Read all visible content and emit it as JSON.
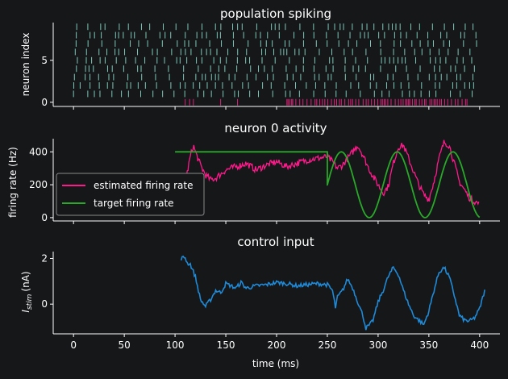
{
  "colors": {
    "background": "#161719",
    "foreground": "#ffffff",
    "spike_pop": "#7ec8b8",
    "spike_neuron0": "#e0207a",
    "estimated": "#ff1a8c",
    "target": "#2aa82a",
    "control": "#1f8ad8"
  },
  "chart_data": [
    {
      "type": "raster",
      "title": "population spiking",
      "ylabel": "neuron index",
      "ylim": [
        -0.5,
        9.5
      ],
      "yticks": [
        0,
        5
      ],
      "xlim": [
        -20,
        420
      ],
      "num_neurons": 10,
      "series": [
        {
          "neurons": [
            1,
            2,
            3,
            4,
            5,
            6,
            7,
            8,
            9
          ],
          "t_start": 0,
          "t_end": 400
        },
        {
          "neurons": [
            0
          ],
          "t_start": 110,
          "t_end": 390,
          "note_visible_gap": [
            135,
            210
          ]
        }
      ]
    },
    {
      "type": "line",
      "title": "neuron 0 activity",
      "ylabel": "firing rate (Hz)",
      "ylim": [
        -20,
        480
      ],
      "yticks": [
        0,
        200,
        400
      ],
      "xlim": [
        -20,
        420
      ],
      "legend_position": "lower-left",
      "series": [
        {
          "name": "estimated firing rate",
          "x": [
            100,
            105,
            110,
            115,
            118,
            120,
            125,
            130,
            135,
            140,
            150,
            160,
            170,
            180,
            190,
            200,
            210,
            220,
            230,
            240,
            250,
            255,
            260,
            265,
            270,
            280,
            285,
            290,
            295,
            300,
            305,
            310,
            315,
            320,
            325,
            330,
            340,
            345,
            350,
            355,
            360,
            365,
            370,
            375,
            380,
            390,
            400
          ],
          "y": [
            10,
            70,
            210,
            370,
            440,
            400,
            320,
            260,
            230,
            240,
            290,
            310,
            330,
            290,
            320,
            340,
            310,
            330,
            350,
            360,
            370,
            340,
            300,
            320,
            360,
            440,
            380,
            310,
            250,
            200,
            150,
            190,
            330,
            430,
            440,
            360,
            200,
            140,
            110,
            220,
            360,
            460,
            440,
            330,
            220,
            120,
            80
          ]
        },
        {
          "name": "target firing rate",
          "x": [
            100,
            250,
            250.5,
            400
          ],
          "y": [
            400,
            400,
            200,
            null
          ],
          "sine_after": {
            "t0": 250,
            "t1": 400,
            "mean": 200,
            "amplitude": 200,
            "period": 55,
            "phase_start": 0
          }
        }
      ]
    },
    {
      "type": "line",
      "title": "control input",
      "ylabel": "I_stim (nA)",
      "ylabel_base": "I",
      "ylabel_sub": "stim",
      "ylabel_unit": "(nA)",
      "xlabel": "time (ms)",
      "ylim": [
        -1.3,
        2.3
      ],
      "yticks": [
        0,
        2
      ],
      "xlim": [
        -20,
        420
      ],
      "xticks": [
        0,
        50,
        100,
        150,
        200,
        250,
        300,
        350,
        400
      ],
      "series": [
        {
          "name": "control input",
          "x": [
            106,
            110,
            112,
            115,
            120,
            125,
            130,
            135,
            140,
            145,
            150,
            155,
            160,
            165,
            170,
            180,
            190,
            200,
            210,
            220,
            230,
            240,
            250,
            255,
            258,
            260,
            265,
            270,
            275,
            280,
            285,
            288,
            292,
            295,
            300,
            305,
            310,
            315,
            320,
            325,
            330,
            335,
            340,
            345,
            350,
            355,
            360,
            365,
            370,
            375,
            380,
            385,
            390,
            395,
            400,
            405
          ],
          "y": [
            2.0,
            2.05,
            1.8,
            1.75,
            1.2,
            0.2,
            -0.1,
            0.2,
            0.6,
            0.5,
            0.9,
            0.8,
            0.7,
            0.95,
            0.7,
            0.8,
            0.85,
            0.95,
            0.9,
            0.8,
            0.85,
            0.9,
            0.85,
            0.6,
            -0.15,
            0.3,
            0.6,
            1.1,
            0.7,
            0.1,
            -0.5,
            -1.05,
            -0.9,
            -0.7,
            0.1,
            0.6,
            1.2,
            1.6,
            1.3,
            0.6,
            0.0,
            -0.5,
            -0.7,
            -0.9,
            -0.3,
            0.6,
            1.4,
            1.6,
            1.2,
            0.4,
            -0.5,
            -0.7,
            -0.75,
            -0.6,
            -0.2,
            0.6
          ]
        }
      ]
    }
  ]
}
